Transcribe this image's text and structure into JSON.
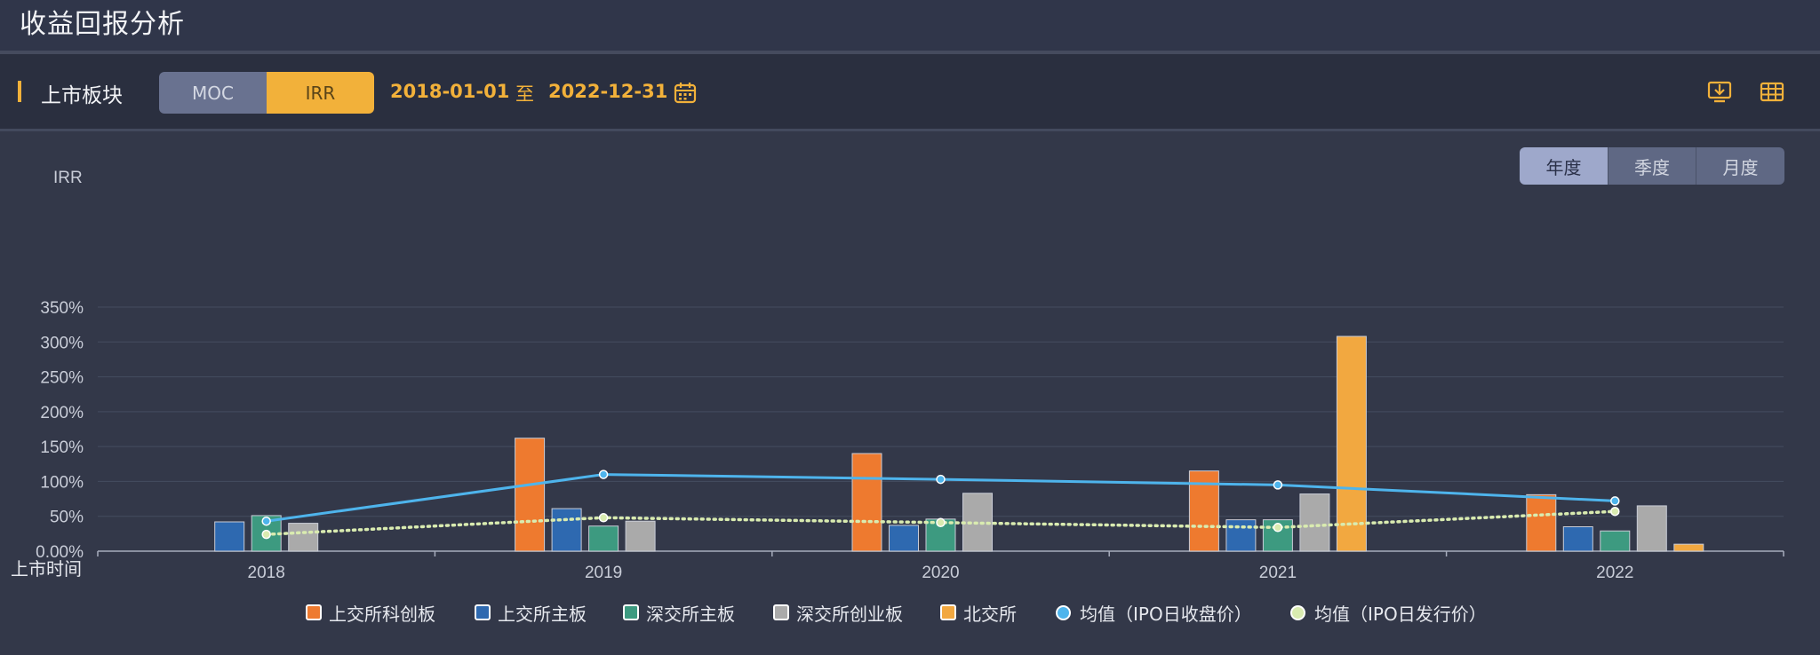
{
  "header": {
    "title": "收益回报分析"
  },
  "toolbar": {
    "section_label": "上市板块",
    "metric_options": [
      {
        "label": "MOC",
        "active": false
      },
      {
        "label": "IRR",
        "active": true
      }
    ],
    "date_start": "2018-01-01",
    "date_separator": "至",
    "date_end": "2022-12-31",
    "icons": [
      "calendar-icon",
      "download-icon",
      "table-icon"
    ]
  },
  "period_tabs": [
    {
      "label": "年度",
      "active": true
    },
    {
      "label": "季度",
      "active": false
    },
    {
      "label": "月度",
      "active": false
    }
  ],
  "colors": {
    "accent": "#f2b13a",
    "background": "#333849",
    "grid": "#454c60",
    "axis_text": "#c9cdd8"
  },
  "chart_data": {
    "type": "bar",
    "ylabel": "IRR",
    "xlabel": "上市时间",
    "categories": [
      "2018",
      "2019",
      "2020",
      "2021",
      "2022"
    ],
    "yticks": [
      "0.00%",
      "50%",
      "100%",
      "150%",
      "200%",
      "250%",
      "300%",
      "350%"
    ],
    "ylim": [
      0,
      350
    ],
    "grid": true,
    "legend_position": "bottom",
    "series": [
      {
        "name": "上交所科创板",
        "kind": "bar",
        "color": "#ee7a2f",
        "values": [
          null,
          162,
          140,
          115,
          81
        ]
      },
      {
        "name": "上交所主板",
        "kind": "bar",
        "color": "#2e69b0",
        "values": [
          42,
          61,
          37,
          45,
          35
        ]
      },
      {
        "name": "深交所主板",
        "kind": "bar",
        "color": "#3d9a80",
        "values": [
          51,
          36,
          46,
          45,
          29
        ]
      },
      {
        "name": "深交所创业板",
        "kind": "bar",
        "color": "#aaaaaa",
        "values": [
          40,
          43,
          83,
          82,
          65
        ]
      },
      {
        "name": "北交所",
        "kind": "bar",
        "color": "#f2a840",
        "values": [
          null,
          null,
          null,
          308,
          10
        ]
      },
      {
        "name": "均值（IPO日收盘价）",
        "kind": "line",
        "style": "solid",
        "color": "#4eb4ec",
        "values": [
          43,
          110,
          103,
          95,
          72
        ]
      },
      {
        "name": "均值（IPO日发行价）",
        "kind": "line",
        "style": "dotted",
        "color": "#d9ebb0",
        "values": [
          24,
          48,
          41,
          34,
          57
        ]
      }
    ]
  }
}
